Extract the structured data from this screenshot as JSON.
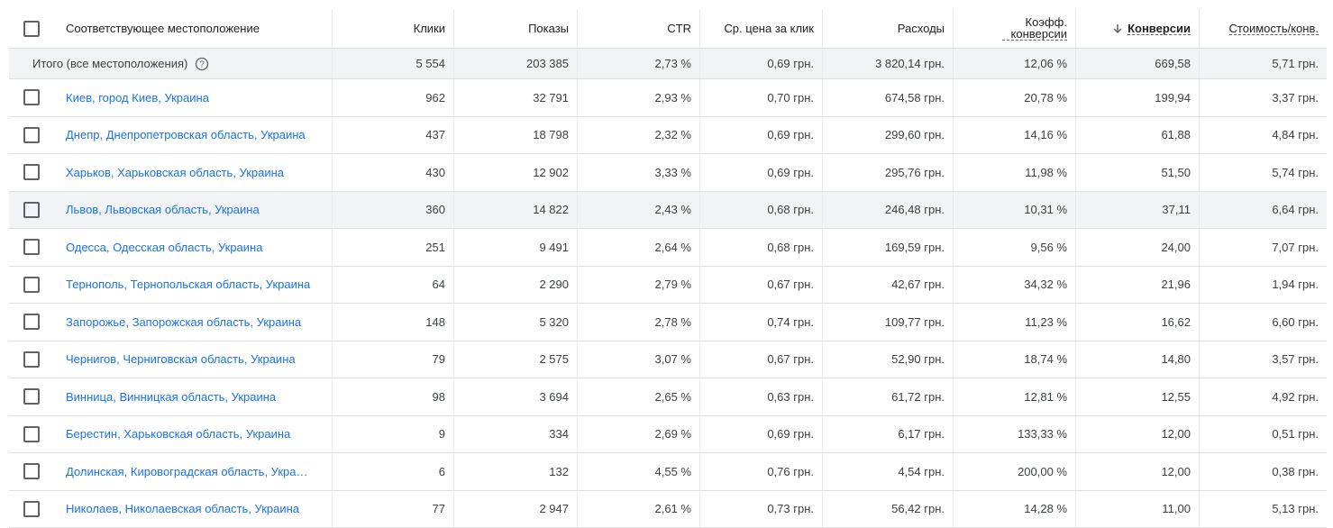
{
  "header": {
    "columns": [
      "Соответствующее местоположение",
      "Клики",
      "Показы",
      "CTR",
      "Ср. цена за клик",
      "Расходы",
      "Коэфф. конверсии",
      "Конверсии",
      "Стоимость/конв."
    ]
  },
  "total": [
    "Итого (все местоположения)",
    "5 554",
    "203 385",
    "2,73 %",
    "0,69 грн.",
    "3 820,14 грн.",
    "12,06 %",
    "669,58",
    "5,71 грн."
  ],
  "rows": [
    [
      "Киев, город Киев, Украина",
      "962",
      "32 791",
      "2,93 %",
      "0,70 грн.",
      "674,58 грн.",
      "20,78 %",
      "199,94",
      "3,37 грн."
    ],
    [
      "Днепр, Днепропетровская область, Украина",
      "437",
      "18 798",
      "2,32 %",
      "0,69 грн.",
      "299,60 грн.",
      "14,16 %",
      "61,88",
      "4,84 грн."
    ],
    [
      "Харьков, Харьковская область, Украина",
      "430",
      "12 902",
      "3,33 %",
      "0,69 грн.",
      "295,76 грн.",
      "11,98 %",
      "51,50",
      "5,74 грн."
    ],
    [
      "Львов, Львовская область, Украина",
      "360",
      "14 822",
      "2,43 %",
      "0,68 грн.",
      "246,48 грн.",
      "10,31 %",
      "37,11",
      "6,64 грн."
    ],
    [
      "Одесса, Одесская область, Украина",
      "251",
      "9 491",
      "2,64 %",
      "0,68 грн.",
      "169,59 грн.",
      "9,56 %",
      "24,00",
      "7,07 грн."
    ],
    [
      "Тернополь, Тернопольская область, Украина",
      "64",
      "2 290",
      "2,79 %",
      "0,67 грн.",
      "42,67 грн.",
      "34,32 %",
      "21,96",
      "1,94 грн."
    ],
    [
      "Запорожье, Запорожская область, Украина",
      "148",
      "5 320",
      "2,78 %",
      "0,74 грн.",
      "109,77 грн.",
      "11,23 %",
      "16,62",
      "6,60 грн."
    ],
    [
      "Чернигов, Черниговская область, Украина",
      "79",
      "2 575",
      "3,07 %",
      "0,67 грн.",
      "52,90 грн.",
      "18,74 %",
      "14,80",
      "3,57 грн."
    ],
    [
      "Винница, Винницкая область, Украина",
      "98",
      "3 694",
      "2,65 %",
      "0,63 грн.",
      "61,72 грн.",
      "12,81 %",
      "12,55",
      "4,92 грн."
    ],
    [
      "Берестин, Харьковская область, Украина",
      "9",
      "334",
      "2,69 %",
      "0,69 грн.",
      "6,17 грн.",
      "133,33 %",
      "12,00",
      "0,51 грн."
    ],
    [
      "Долинская, Кировоградская область, Укра…",
      "6",
      "132",
      "4,55 %",
      "0,76 грн.",
      "4,54 грн.",
      "200,00 %",
      "12,00",
      "0,38 грн."
    ],
    [
      "Николаев, Николаевская область, Украина",
      "77",
      "2 947",
      "2,61 %",
      "0,73 грн.",
      "56,42 грн.",
      "14,28 %",
      "11,00",
      "5,13 грн."
    ]
  ]
}
